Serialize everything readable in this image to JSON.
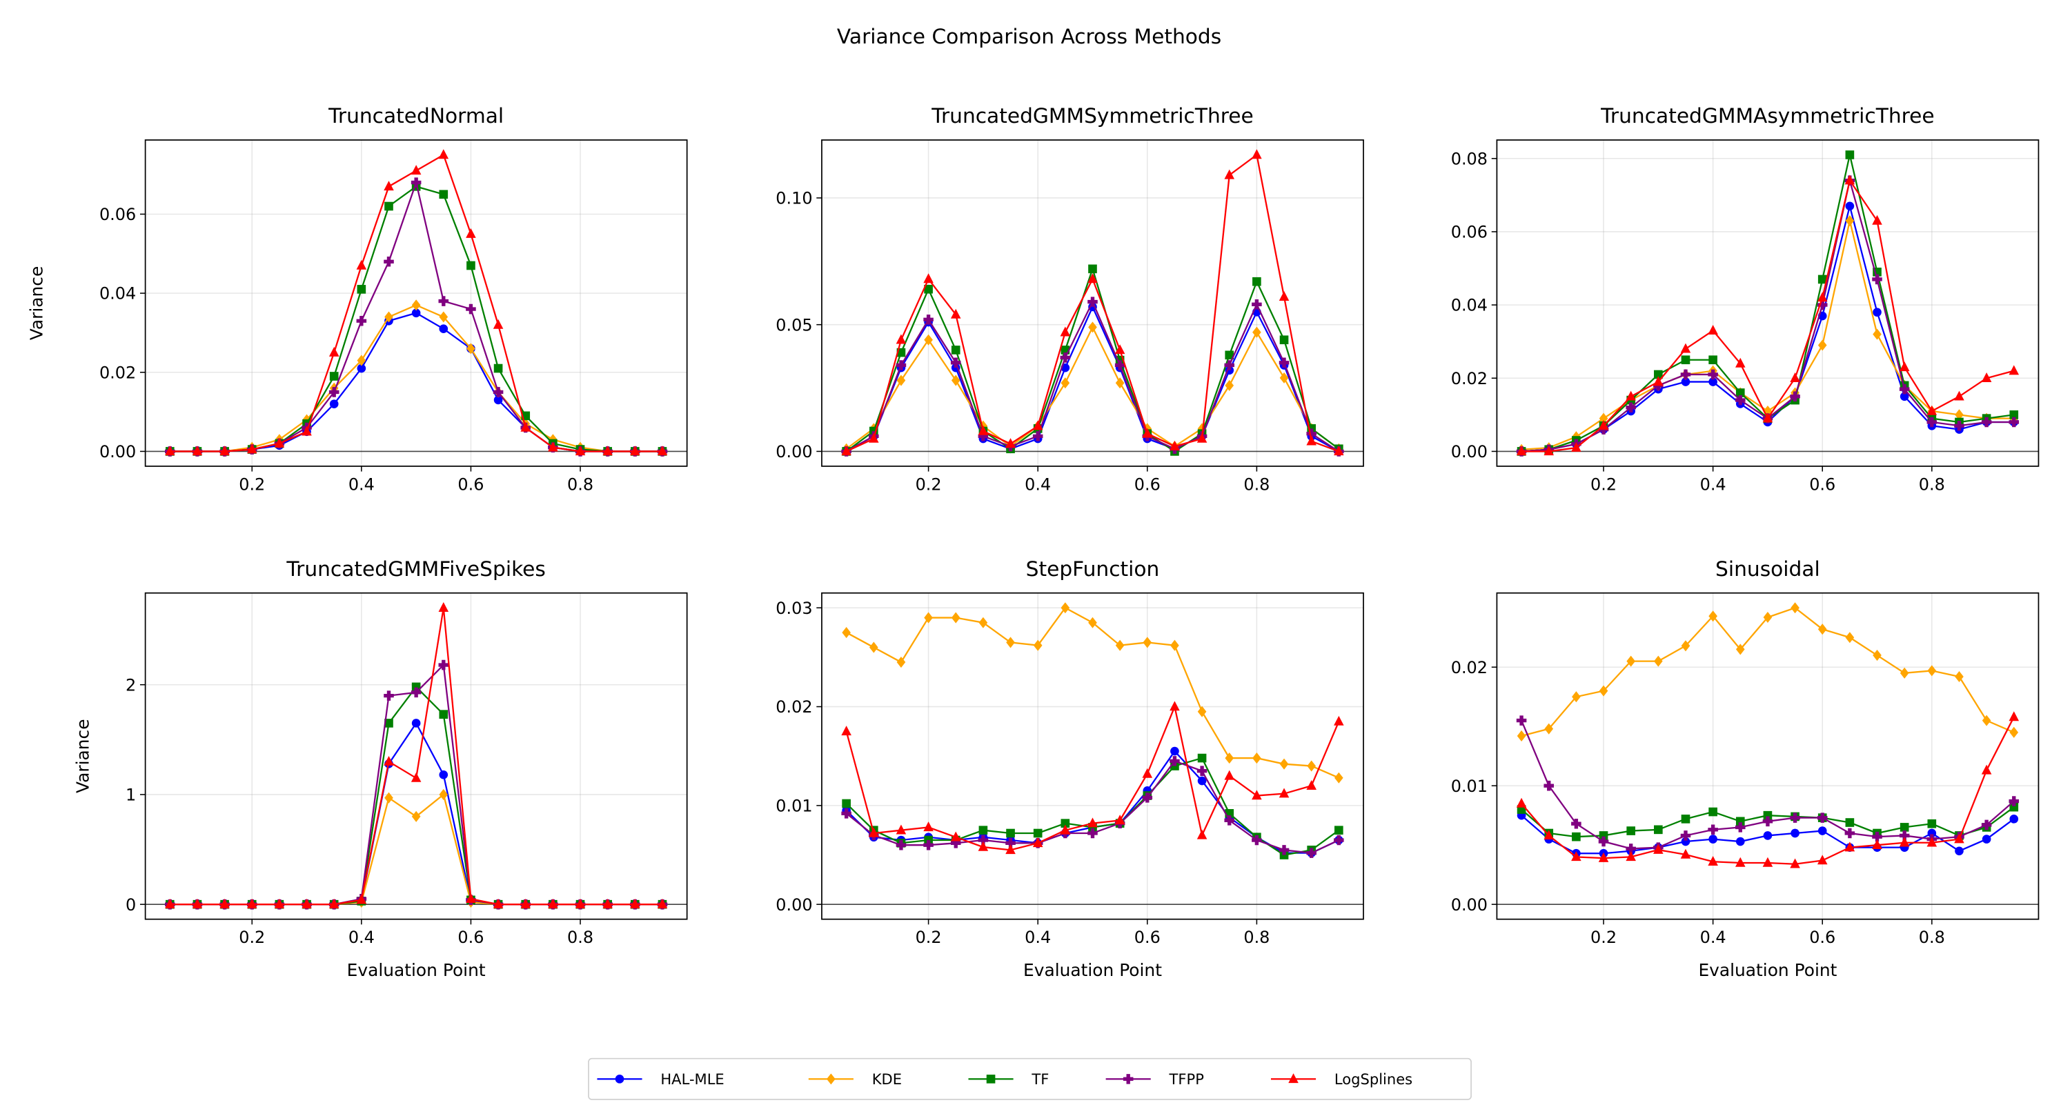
{
  "chart_data": {
    "type": "line",
    "title": "Variance Comparison Across Methods",
    "x": [
      0.05,
      0.1,
      0.15,
      0.2,
      0.25,
      0.3,
      0.35,
      0.4,
      0.45,
      0.5,
      0.55,
      0.6,
      0.65,
      0.7,
      0.75,
      0.8,
      0.85,
      0.9,
      0.95
    ],
    "legend": {
      "placement": "bottom-center",
      "entries": [
        {
          "name": "HAL-MLE",
          "color": "#0000ff",
          "marker": "circle"
        },
        {
          "name": "KDE",
          "color": "#ffa500",
          "marker": "diamond"
        },
        {
          "name": "TF",
          "color": "#008000",
          "marker": "square"
        },
        {
          "name": "TFPP",
          "color": "#800080",
          "marker": "plus"
        },
        {
          "name": "LogSplines",
          "color": "#ff0000",
          "marker": "triangle"
        }
      ]
    },
    "panels": [
      {
        "title": "TruncatedNormal",
        "xlabel": "",
        "ylabel": "Variance",
        "xticks": [
          "0.2",
          "0.4",
          "0.6",
          "0.8"
        ],
        "yticks": [
          "0.00",
          "0.02",
          "0.04",
          "0.06"
        ],
        "ytick_values": [
          0,
          0.02,
          0.04,
          0.06
        ],
        "series": [
          [
            0,
            0,
            0,
            0.0005,
            0.0015,
            0.005,
            0.012,
            0.021,
            0.033,
            0.035,
            0.031,
            0.026,
            0.013,
            0.006,
            0.001,
            0,
            0,
            0,
            0
          ],
          [
            0,
            0,
            0,
            0.001,
            0.003,
            0.008,
            0.016,
            0.023,
            0.034,
            0.037,
            0.034,
            0.026,
            0.015,
            0.007,
            0.003,
            0.001,
            0,
            0,
            0
          ],
          [
            0,
            0,
            0,
            0.0005,
            0.002,
            0.007,
            0.019,
            0.041,
            0.062,
            0.067,
            0.065,
            0.047,
            0.021,
            0.009,
            0.002,
            0.0005,
            0,
            0,
            0
          ],
          [
            0,
            0,
            0,
            0.0005,
            0.002,
            0.006,
            0.015,
            0.033,
            0.048,
            0.068,
            0.038,
            0.036,
            0.015,
            0.006,
            0.001,
            0,
            0,
            0,
            0
          ],
          [
            0,
            0,
            0,
            0.0005,
            0.002,
            0.005,
            0.025,
            0.047,
            0.067,
            0.071,
            0.075,
            0.055,
            0.032,
            0.006,
            0.001,
            0,
            0,
            0,
            0
          ]
        ]
      },
      {
        "title": "TruncatedGMMSymmetricThree",
        "xlabel": "",
        "ylabel": "",
        "xticks": [
          "0.2",
          "0.4",
          "0.6",
          "0.8"
        ],
        "yticks": [
          "0.00",
          "0.05",
          "0.10"
        ],
        "ytick_values": [
          0,
          0.05,
          0.1
        ],
        "series": [
          [
            0,
            0.006,
            0.033,
            0.051,
            0.033,
            0.005,
            0.001,
            0.005,
            0.033,
            0.057,
            0.033,
            0.005,
            0.001,
            0.006,
            0.032,
            0.055,
            0.034,
            0.006,
            0
          ],
          [
            0.001,
            0.009,
            0.028,
            0.044,
            0.028,
            0.01,
            0.002,
            0.01,
            0.027,
            0.049,
            0.027,
            0.009,
            0.002,
            0.009,
            0.026,
            0.047,
            0.029,
            0.009,
            0.001
          ],
          [
            0,
            0.008,
            0.039,
            0.064,
            0.04,
            0.008,
            0.001,
            0.009,
            0.04,
            0.072,
            0.036,
            0.007,
            0,
            0.007,
            0.038,
            0.067,
            0.044,
            0.009,
            0.001
          ],
          [
            0,
            0.006,
            0.034,
            0.052,
            0.035,
            0.006,
            0.002,
            0.006,
            0.037,
            0.059,
            0.034,
            0.006,
            0.001,
            0.006,
            0.034,
            0.058,
            0.035,
            0.007,
            0
          ],
          [
            0,
            0.005,
            0.044,
            0.068,
            0.054,
            0.008,
            0.003,
            0.01,
            0.047,
            0.068,
            0.04,
            0.007,
            0.002,
            0.005,
            0.109,
            0.117,
            0.061,
            0.004,
            0
          ]
        ]
      },
      {
        "title": "TruncatedGMMAsymmetricThree",
        "xlabel": "",
        "ylabel": "",
        "xticks": [
          "0.2",
          "0.4",
          "0.6",
          "0.8"
        ],
        "yticks": [
          "0.00",
          "0.02",
          "0.04",
          "0.06",
          "0.08"
        ],
        "ytick_values": [
          0,
          0.02,
          0.04,
          0.06,
          0.08
        ],
        "series": [
          [
            0,
            0.0005,
            0.002,
            0.006,
            0.011,
            0.017,
            0.019,
            0.019,
            0.013,
            0.008,
            0.015,
            0.037,
            0.067,
            0.038,
            0.015,
            0.007,
            0.006,
            0.008,
            0.008
          ],
          [
            0.0005,
            0.001,
            0.004,
            0.009,
            0.014,
            0.018,
            0.021,
            0.022,
            0.016,
            0.011,
            0.016,
            0.029,
            0.063,
            0.032,
            0.018,
            0.011,
            0.01,
            0.009,
            0.009
          ],
          [
            0,
            0.0005,
            0.003,
            0.007,
            0.014,
            0.021,
            0.025,
            0.025,
            0.016,
            0.009,
            0.014,
            0.047,
            0.081,
            0.049,
            0.018,
            0.009,
            0.008,
            0.009,
            0.01
          ],
          [
            0,
            0.0005,
            0.002,
            0.006,
            0.012,
            0.018,
            0.021,
            0.021,
            0.014,
            0.009,
            0.015,
            0.04,
            0.074,
            0.047,
            0.017,
            0.008,
            0.007,
            0.008,
            0.008
          ],
          [
            0,
            0,
            0.001,
            0.007,
            0.015,
            0.019,
            0.028,
            0.033,
            0.024,
            0.009,
            0.02,
            0.042,
            0.074,
            0.063,
            0.023,
            0.011,
            0.015,
            0.02,
            0.022
          ]
        ]
      },
      {
        "title": "TruncatedGMMFiveSpikes",
        "xlabel": "Evaluation Point",
        "ylabel": "Variance",
        "xticks": [
          "0.2",
          "0.4",
          "0.6",
          "0.8"
        ],
        "yticks": [
          "0",
          "1",
          "2"
        ],
        "ytick_values": [
          0,
          1,
          2
        ],
        "series": [
          [
            0,
            0,
            0,
            0,
            0,
            0,
            0,
            0.03,
            1.28,
            1.65,
            1.18,
            0.03,
            0,
            0,
            0,
            0,
            0,
            0,
            0
          ],
          [
            0,
            0,
            0,
            0,
            0,
            0,
            0,
            0.02,
            0.97,
            0.8,
            1.0,
            0.02,
            0,
            0,
            0,
            0,
            0,
            0,
            0
          ],
          [
            0,
            0,
            0,
            0,
            0,
            0,
            0,
            0.03,
            1.65,
            1.98,
            1.73,
            0.04,
            0,
            0,
            0,
            0,
            0,
            0,
            0
          ],
          [
            0,
            0,
            0,
            0,
            0,
            0,
            0,
            0.05,
            1.9,
            1.93,
            2.18,
            0.04,
            0,
            0,
            0,
            0,
            0,
            0,
            0
          ],
          [
            0,
            0,
            0,
            0,
            0,
            0,
            0,
            0.04,
            1.3,
            1.15,
            2.7,
            0.05,
            0,
            0,
            0,
            0,
            0,
            0,
            0
          ]
        ]
      },
      {
        "title": "StepFunction",
        "xlabel": "Evaluation Point",
        "ylabel": "",
        "xticks": [
          "0.2",
          "0.4",
          "0.6",
          "0.8"
        ],
        "yticks": [
          "0.00",
          "0.01",
          "0.02",
          "0.03"
        ],
        "ytick_values": [
          0,
          0.01,
          0.02,
          0.03
        ],
        "series": [
          [
            0.0095,
            0.0068,
            0.0065,
            0.0068,
            0.0065,
            0.0068,
            0.0065,
            0.0062,
            0.0072,
            0.0078,
            0.0082,
            0.0115,
            0.0155,
            0.0125,
            0.0088,
            0.0068,
            0.0052,
            0.0052,
            0.0065
          ],
          [
            0.0275,
            0.026,
            0.0245,
            0.029,
            0.029,
            0.0285,
            0.0265,
            0.0262,
            0.03,
            0.0285,
            0.0262,
            0.0265,
            0.0262,
            0.0195,
            0.0148,
            0.0148,
            0.0142,
            0.014,
            0.0128
          ],
          [
            0.0102,
            0.0075,
            0.0062,
            0.0065,
            0.0065,
            0.0075,
            0.0072,
            0.0072,
            0.0082,
            0.0078,
            0.0082,
            0.011,
            0.014,
            0.0148,
            0.0092,
            0.0068,
            0.005,
            0.0055,
            0.0075
          ],
          [
            0.0092,
            0.007,
            0.006,
            0.006,
            0.0062,
            0.0065,
            0.0062,
            0.0062,
            0.0072,
            0.0072,
            0.0082,
            0.0108,
            0.0145,
            0.0135,
            0.0085,
            0.0065,
            0.0055,
            0.0052,
            0.0065
          ],
          [
            0.0175,
            0.0072,
            0.0075,
            0.0078,
            0.0068,
            0.0058,
            0.0055,
            0.0062,
            0.0075,
            0.0082,
            0.0085,
            0.0132,
            0.02,
            0.007,
            0.013,
            0.011,
            0.0112,
            0.012,
            0.0185
          ]
        ]
      },
      {
        "title": "Sinusoidal",
        "xlabel": "Evaluation Point",
        "ylabel": "",
        "xticks": [
          "0.2",
          "0.4",
          "0.6",
          "0.8"
        ],
        "yticks": [
          "0.00",
          "0.01",
          "0.02"
        ],
        "ytick_values": [
          0,
          0.01,
          0.02
        ],
        "series": [
          [
            0.0075,
            0.0055,
            0.0043,
            0.0043,
            0.0045,
            0.0048,
            0.0053,
            0.0055,
            0.0053,
            0.0058,
            0.006,
            0.0062,
            0.0048,
            0.0048,
            0.0048,
            0.006,
            0.0045,
            0.0055,
            0.0072
          ],
          [
            0.0142,
            0.0148,
            0.0175,
            0.018,
            0.0205,
            0.0205,
            0.0218,
            0.0243,
            0.0215,
            0.0242,
            0.025,
            0.0232,
            0.0225,
            0.021,
            0.0195,
            0.0197,
            0.0192,
            0.0155,
            0.0145
          ],
          [
            0.008,
            0.006,
            0.0057,
            0.0058,
            0.0062,
            0.0063,
            0.0072,
            0.0078,
            0.007,
            0.0075,
            0.0074,
            0.0073,
            0.0069,
            0.006,
            0.0065,
            0.0068,
            0.0058,
            0.0065,
            0.0082
          ],
          [
            0.0155,
            0.01,
            0.0068,
            0.0053,
            0.0047,
            0.0048,
            0.0058,
            0.0063,
            0.0065,
            0.007,
            0.0073,
            0.0073,
            0.006,
            0.0057,
            0.0058,
            0.0055,
            0.0057,
            0.0067,
            0.0087
          ],
          [
            0.0085,
            0.0058,
            0.004,
            0.0039,
            0.004,
            0.0046,
            0.0042,
            0.0036,
            0.0035,
            0.0035,
            0.0034,
            0.0037,
            0.0048,
            0.005,
            0.0052,
            0.0052,
            0.0055,
            0.0113,
            0.0158
          ]
        ]
      }
    ],
    "xlim": [
      0.005,
      0.995
    ],
    "grid": true
  }
}
